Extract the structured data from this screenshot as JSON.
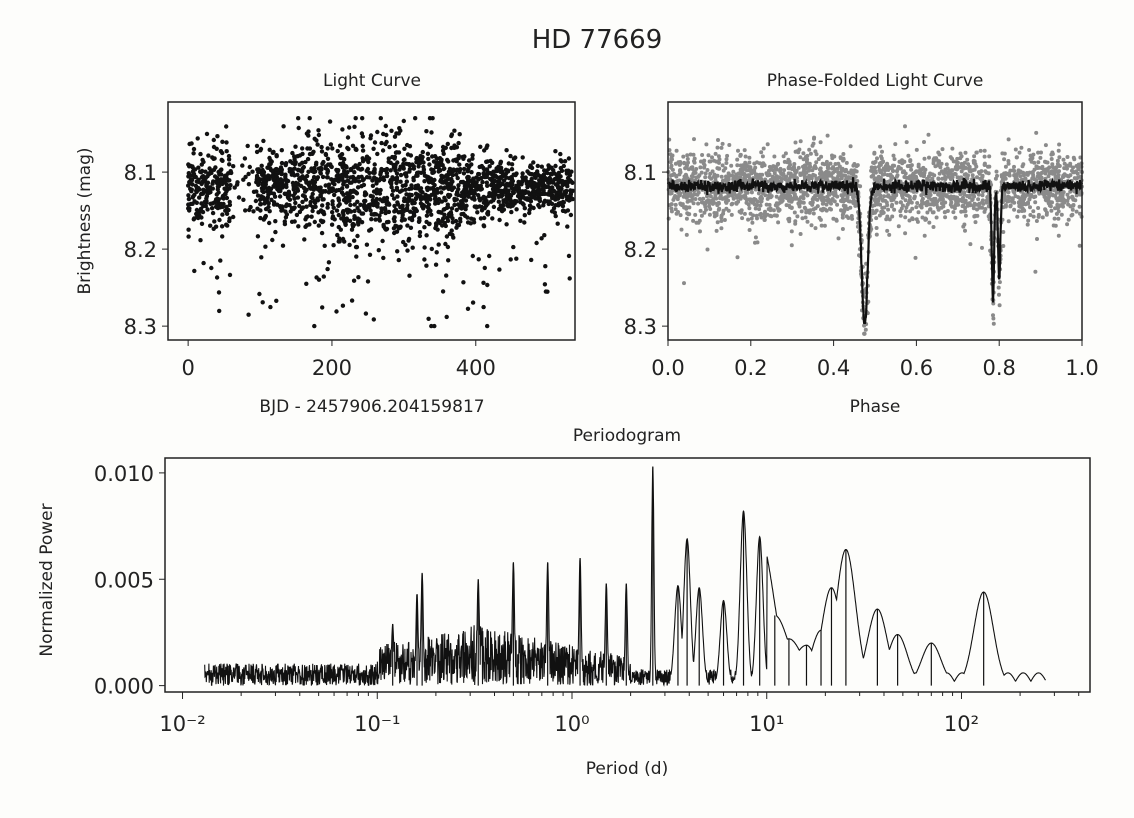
{
  "figure_title": "HD 77669",
  "chart_data": [
    {
      "type": "scatter",
      "title": "Light Curve",
      "xlabel": "BJD - 2457906.204159817",
      "ylabel": "Brightness (mag)",
      "xlim": [
        -28,
        538
      ],
      "ylim": [
        8.318,
        8.009
      ],
      "xticks": [
        0,
        200,
        400
      ],
      "xtick_labels": [
        "0",
        "200",
        "400"
      ],
      "yticks": [
        8.1,
        8.2,
        8.3
      ],
      "ytick_labels": [
        "8.1",
        "8.2",
        "8.3"
      ],
      "color": "#111111",
      "data_summary": {
        "time_range": [
          0,
          535
        ],
        "gap": [
          60,
          95
        ],
        "baseline_mag": 8.12,
        "scatter_mag": 0.025,
        "brightest_mag": 8.03,
        "faintest_mag": 8.3,
        "n_points_drawn": 2200
      }
    },
    {
      "type": "scatter",
      "title": "Phase-Folded Light Curve",
      "xlabel": "Phase",
      "ylabel": "",
      "xlim": [
        0.0,
        1.0
      ],
      "ylim": [
        8.318,
        8.009
      ],
      "xticks": [
        0.0,
        0.2,
        0.4,
        0.6,
        0.8,
        1.0
      ],
      "xtick_labels": [
        "0.0",
        "0.2",
        "0.4",
        "0.6",
        "0.8",
        "1.0"
      ],
      "yticks": [
        8.1,
        8.2,
        8.3
      ],
      "ytick_labels": [
        "8.1",
        "8.2",
        "8.3"
      ],
      "series": [
        {
          "name": "folded data",
          "color": "#8a8a8a"
        },
        {
          "name": "binned",
          "color": "#111111"
        }
      ],
      "baseline_mag": 8.118,
      "eclipses": [
        {
          "phase": 0.475,
          "depth_mag": 8.3,
          "width": 0.01
        },
        {
          "phase": 0.785,
          "depth_mag": 8.265,
          "width": 0.004
        },
        {
          "phase": 0.8,
          "depth_mag": 8.24,
          "width": 0.004
        }
      ]
    },
    {
      "type": "line",
      "title": "Periodogram",
      "xlabel": "Period (d)",
      "ylabel": "Normalized Power",
      "xscale": "log",
      "xlim_log10": [
        -2.09,
        2.66
      ],
      "ylim": [
        -0.0003,
        0.0107
      ],
      "xticks_log10": [
        -2,
        -1,
        0,
        1,
        2
      ],
      "xtick_labels": [
        "10⁻²",
        "10⁻¹",
        "10⁰",
        "10¹",
        "10²"
      ],
      "yticks": [
        0.0,
        0.005,
        0.01
      ],
      "ytick_labels": [
        "0.000",
        "0.005",
        "0.010"
      ],
      "color": "#111111",
      "period_range": [
        0.013,
        270
      ],
      "peaks": [
        {
          "period": 0.12,
          "power": 0.0029
        },
        {
          "period": 0.16,
          "power": 0.0043
        },
        {
          "period": 0.17,
          "power": 0.0053
        },
        {
          "period": 0.33,
          "power": 0.005
        },
        {
          "period": 0.5,
          "power": 0.0058
        },
        {
          "period": 0.75,
          "power": 0.0058
        },
        {
          "period": 1.1,
          "power": 0.006
        },
        {
          "period": 1.5,
          "power": 0.0048
        },
        {
          "period": 1.9,
          "power": 0.0048
        },
        {
          "period": 2.6,
          "power": 0.0103
        },
        {
          "period": 3.5,
          "power": 0.0047
        },
        {
          "period": 3.9,
          "power": 0.0069
        },
        {
          "period": 4.5,
          "power": 0.0046
        },
        {
          "period": 6.0,
          "power": 0.004
        },
        {
          "period": 7.6,
          "power": 0.0082
        },
        {
          "period": 9.2,
          "power": 0.007
        },
        {
          "period": 11.0,
          "power": 0.0033
        },
        {
          "period": 13.0,
          "power": 0.0022
        },
        {
          "period": 16.0,
          "power": 0.0019
        },
        {
          "period": 19.0,
          "power": 0.0026
        },
        {
          "period": 21.5,
          "power": 0.0046
        },
        {
          "period": 25.5,
          "power": 0.0064
        },
        {
          "period": 37.0,
          "power": 0.0036
        },
        {
          "period": 47.0,
          "power": 0.0024
        },
        {
          "period": 70.0,
          "power": 0.002
        },
        {
          "period": 130.0,
          "power": 0.0044
        }
      ]
    }
  ]
}
